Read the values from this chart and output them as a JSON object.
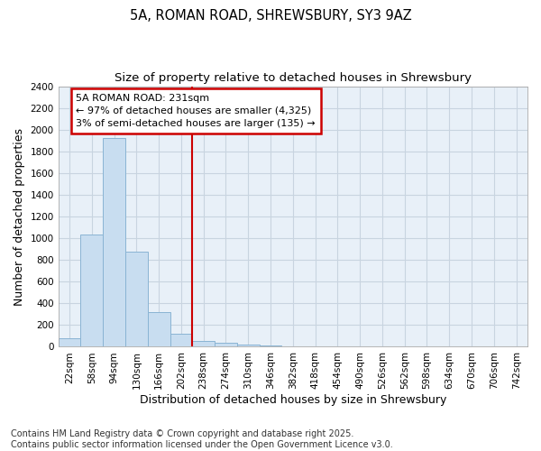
{
  "title_line1": "5A, ROMAN ROAD, SHREWSBURY, SY3 9AZ",
  "title_line2": "Size of property relative to detached houses in Shrewsbury",
  "xlabel": "Distribution of detached houses by size in Shrewsbury",
  "ylabel": "Number of detached properties",
  "categories": [
    "22sqm",
    "58sqm",
    "94sqm",
    "130sqm",
    "166sqm",
    "202sqm",
    "238sqm",
    "274sqm",
    "310sqm",
    "346sqm",
    "382sqm",
    "418sqm",
    "454sqm",
    "490sqm",
    "526sqm",
    "562sqm",
    "598sqm",
    "634sqm",
    "670sqm",
    "706sqm",
    "742sqm"
  ],
  "values": [
    80,
    1030,
    1920,
    880,
    320,
    120,
    55,
    40,
    20,
    10,
    0,
    0,
    0,
    0,
    0,
    0,
    0,
    0,
    0,
    0,
    0
  ],
  "bar_color": "#c8ddf0",
  "bar_edge_color": "#8ab4d4",
  "highlight_line_color": "#cc0000",
  "annotation_line1": "5A ROMAN ROAD: 231sqm",
  "annotation_line2": "← 97% of detached houses are smaller (4,325)",
  "annotation_line3": "3% of semi-detached houses are larger (135) →",
  "annotation_box_facecolor": "#ffffff",
  "annotation_box_edge": "#cc0000",
  "ylim": [
    0,
    2400
  ],
  "yticks": [
    0,
    200,
    400,
    600,
    800,
    1000,
    1200,
    1400,
    1600,
    1800,
    2000,
    2200,
    2400
  ],
  "grid_color": "#c8d4e0",
  "background_color": "#e8f0f8",
  "footer_text": "Contains HM Land Registry data © Crown copyright and database right 2025.\nContains public sector information licensed under the Open Government Licence v3.0.",
  "title_fontsize": 10.5,
  "subtitle_fontsize": 9.5,
  "axis_label_fontsize": 9,
  "tick_fontsize": 7.5,
  "annotation_fontsize": 8,
  "footer_fontsize": 7
}
